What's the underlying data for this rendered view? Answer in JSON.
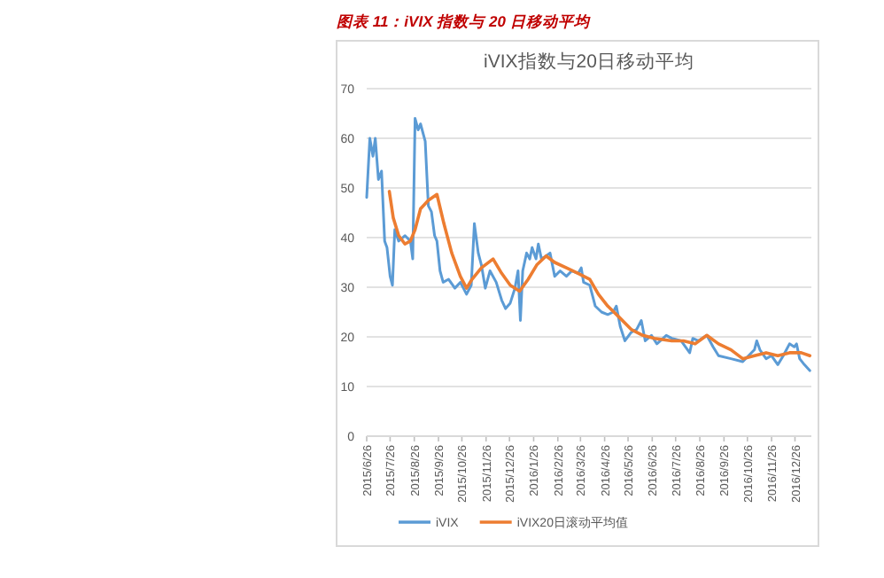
{
  "chart_data": {
    "type": "line",
    "title": "iVIX指数与20日移动平均",
    "annotations": [
      "图表 11：iVIX 指数与 20 日移动平均"
    ],
    "xlim": [
      "2015-06-26",
      "2017-01-16"
    ],
    "xticks": [
      {
        "value": "2015-06-26",
        "label": "2015/6/26"
      },
      {
        "value": "2015-07-26",
        "label": "2015/7/26"
      },
      {
        "value": "2015-08-26",
        "label": "2015/8/26"
      },
      {
        "value": "2015-09-26",
        "label": "2015/9/26"
      },
      {
        "value": "2015-10-26",
        "label": "2015/10/26"
      },
      {
        "value": "2015-11-26",
        "label": "2015/11/26"
      },
      {
        "value": "2015-12-26",
        "label": "2015/12/26"
      },
      {
        "value": "2016-01-26",
        "label": "2016/1/26"
      },
      {
        "value": "2016-02-26",
        "label": "2016/2/26"
      },
      {
        "value": "2016-03-26",
        "label": "2016/3/26"
      },
      {
        "value": "2016-04-26",
        "label": "2016/4/26"
      },
      {
        "value": "2016-05-26",
        "label": "2016/5/26"
      },
      {
        "value": "2016-06-26",
        "label": "2016/6/26"
      },
      {
        "value": "2016-07-26",
        "label": "2016/7/26"
      },
      {
        "value": "2016-08-26",
        "label": "2016/8/26"
      },
      {
        "value": "2016-09-26",
        "label": "2016/9/26"
      },
      {
        "value": "2016-10-26",
        "label": "2016/10/26"
      },
      {
        "value": "2016-11-26",
        "label": "2016/11/26"
      },
      {
        "value": "2016-12-26",
        "label": "2016/12/26"
      }
    ],
    "ylim": [
      0,
      70
    ],
    "yticks": [
      0,
      10,
      20,
      30,
      40,
      50,
      60,
      70
    ],
    "grid": "y",
    "legend": "bottom",
    "marker": "none",
    "line_style": "solid",
    "series": [
      {
        "name": "iVIX",
        "color": "#5b9bd5",
        "x": [
          "2015-06-26",
          "2015-06-30",
          "2015-07-04",
          "2015-07-07",
          "2015-07-11",
          "2015-07-15",
          "2015-07-19",
          "2015-07-22",
          "2015-07-26",
          "2015-07-29",
          "2015-08-01",
          "2015-08-06",
          "2015-08-14",
          "2015-08-21",
          "2015-08-24",
          "2015-08-27",
          "2015-08-31",
          "2015-09-03",
          "2015-09-09",
          "2015-09-13",
          "2015-09-17",
          "2015-09-21",
          "2015-09-24",
          "2015-09-28",
          "2015-10-02",
          "2015-10-09",
          "2015-10-17",
          "2015-10-24",
          "2015-11-01",
          "2015-11-07",
          "2015-11-11",
          "2015-11-16",
          "2015-11-20",
          "2015-11-25",
          "2015-12-01",
          "2015-12-09",
          "2015-12-16",
          "2015-12-21",
          "2015-12-27",
          "2016-01-02",
          "2016-01-06",
          "2016-01-09",
          "2016-01-12",
          "2016-01-17",
          "2016-01-21",
          "2016-01-24",
          "2016-01-29",
          "2016-02-01",
          "2016-02-05",
          "2016-02-11",
          "2016-02-16",
          "2016-02-22",
          "2016-02-29",
          "2016-03-08",
          "2016-03-15",
          "2016-03-23",
          "2016-03-27",
          "2016-03-30",
          "2016-04-07",
          "2016-04-14",
          "2016-04-22",
          "2016-04-30",
          "2016-05-07",
          "2016-05-11",
          "2016-05-16",
          "2016-05-22",
          "2016-05-30",
          "2016-06-06",
          "2016-06-12",
          "2016-06-17",
          "2016-06-25",
          "2016-07-02",
          "2016-07-14",
          "2016-07-21",
          "2016-08-02",
          "2016-08-13",
          "2016-08-17",
          "2016-08-24",
          "2016-09-04",
          "2016-09-12",
          "2016-09-19",
          "2016-10-05",
          "2016-10-20",
          "2016-11-04",
          "2016-11-07",
          "2016-11-11",
          "2016-11-19",
          "2016-11-26",
          "2016-12-04",
          "2016-12-11",
          "2016-12-19",
          "2016-12-25",
          "2016-12-28",
          "2017-01-01",
          "2017-01-07",
          "2017-01-14"
        ],
        "values": [
          48.1,
          60,
          56.4,
          60,
          51.7,
          53.4,
          39.3,
          38,
          32.2,
          30.4,
          41.6,
          39.3,
          40.4,
          39.3,
          35.7,
          64,
          61.7,
          62.9,
          59.4,
          46.4,
          45.2,
          40.4,
          39.3,
          33.3,
          31,
          31.6,
          29.8,
          31,
          28.6,
          30.4,
          42.8,
          36.9,
          34.5,
          29.8,
          33.3,
          31,
          27.4,
          25.7,
          26.8,
          29.8,
          33.3,
          23.3,
          33.3,
          36.9,
          35.7,
          38,
          35.7,
          38.7,
          35.7,
          36.3,
          36.9,
          32.2,
          33.3,
          32.2,
          33.3,
          32.8,
          33.9,
          31,
          30.4,
          26.2,
          25,
          24.5,
          25,
          26.2,
          22.1,
          19.2,
          20.9,
          21.5,
          23.3,
          19.2,
          20.3,
          18.6,
          20.3,
          19.7,
          19.2,
          16.8,
          19.7,
          19.2,
          20.3,
          18,
          16.2,
          15.6,
          15,
          17.4,
          19.2,
          17.4,
          15.6,
          16.2,
          14.4,
          16.2,
          18.6,
          18,
          18.6,
          15.6,
          14.4,
          13.2
        ]
      },
      {
        "name": "iVIX20日滚动平均值",
        "color": "#ed7d31",
        "x": [
          "2015-07-25",
          "2015-07-30",
          "2015-08-06",
          "2015-08-14",
          "2015-08-21",
          "2015-08-27",
          "2015-09-03",
          "2015-09-13",
          "2015-09-24",
          "2015-10-03",
          "2015-10-13",
          "2015-10-24",
          "2015-11-01",
          "2015-11-08",
          "2015-11-20",
          "2015-12-05",
          "2015-12-16",
          "2015-12-27",
          "2016-01-08",
          "2016-01-19",
          "2016-01-30",
          "2016-02-11",
          "2016-02-22",
          "2016-03-08",
          "2016-03-23",
          "2016-04-07",
          "2016-04-18",
          "2016-04-30",
          "2016-05-15",
          "2016-05-30",
          "2016-06-14",
          "2016-06-29",
          "2016-07-21",
          "2016-08-05",
          "2016-08-20",
          "2016-09-04",
          "2016-09-19",
          "2016-10-05",
          "2016-10-20",
          "2016-11-04",
          "2016-11-19",
          "2016-12-04",
          "2016-12-19",
          "2017-01-03",
          "2017-01-14"
        ],
        "values": [
          49.3,
          44,
          40.4,
          38.7,
          39.3,
          41.6,
          45.8,
          47.5,
          48.7,
          42.8,
          36.9,
          32.2,
          29.8,
          31.6,
          33.9,
          35.7,
          32.8,
          30.4,
          29.2,
          31.6,
          34.5,
          36.3,
          35,
          33.9,
          32.8,
          31.6,
          28.6,
          26.2,
          23.9,
          21.5,
          20.3,
          19.7,
          19.2,
          19.2,
          18.6,
          20.3,
          18.6,
          17.4,
          15.6,
          16.2,
          16.8,
          16.2,
          16.8,
          16.8,
          16.2
        ]
      }
    ]
  }
}
